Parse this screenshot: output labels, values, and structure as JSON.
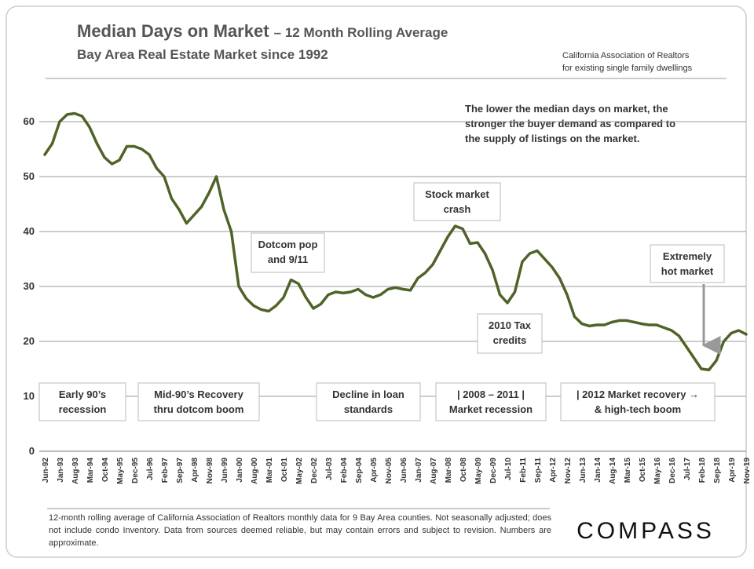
{
  "chart_data": {
    "type": "line",
    "title": "Median Days on Market",
    "title_suffix": "– 12 Month Rolling Average",
    "subtitle": "Bay Area Real Estate Market since 1992",
    "source": [
      "California Association of Realtors",
      "for existing single family dwellings"
    ],
    "note": [
      "The lower the median days on market, the",
      "stronger the buyer demand as compared to",
      "the supply of listings on the market."
    ],
    "footnote": "12-month rolling average of California Association of Realtors monthly data for 9 Bay Area counties. Not seasonally adjusted; does not include condo Inventory. Data from sources deemed reliable, but may contain errors and subject to revision. Numbers are approximate.",
    "logo": "COMPASS",
    "annotations": [
      [
        "Early 90’s",
        "recession"
      ],
      [
        "Mid-90’s Recovery",
        "thru dotcom boom"
      ],
      [
        "Dotcom pop",
        "and 9/11"
      ],
      [
        "Decline in loan",
        "standards"
      ],
      [
        "Stock market",
        "crash"
      ],
      [
        "|   2008 – 2011   |",
        "Market recession"
      ],
      [
        "2010 Tax",
        "credits"
      ],
      [
        "| 2012 Market recovery →",
        "& high-tech boom"
      ],
      [
        "Extremely",
        "hot market"
      ]
    ],
    "color": "#4f6228",
    "categories": [
      "Jun-92",
      null,
      "Jan-93",
      null,
      "Aug-93",
      null,
      "Mar-94",
      null,
      "Oct-94",
      null,
      "May-95",
      null,
      "Dec-95",
      null,
      "Jul-96",
      null,
      "Feb-97",
      null,
      "Sep-97",
      null,
      "Apr-98",
      null,
      "Nov-98",
      null,
      "Jun-99",
      null,
      "Jan-00",
      null,
      "Aug-00",
      null,
      "Mar-01",
      null,
      "Oct-01",
      null,
      "May-02",
      null,
      "Dec-02",
      null,
      "Jul-03",
      null,
      "Feb-04",
      null,
      "Sep-04",
      null,
      "Apr-05",
      null,
      "Nov-05",
      null,
      "Jun-06",
      null,
      "Jan-07",
      null,
      "Aug-07",
      null,
      "Mar-08",
      null,
      "Oct-08",
      null,
      "May-09",
      null,
      "Dec-09",
      null,
      "Jul-10",
      null,
      "Feb-11",
      null,
      "Sep-11",
      null,
      "Apr-12",
      null,
      "Nov-12",
      null,
      "Jun-13",
      null,
      "Jan-14",
      null,
      "Aug-14",
      null,
      "Mar-15",
      null,
      "Oct-15",
      null,
      "May-16",
      null,
      "Dec-16",
      null,
      "Jul-17",
      null,
      "Feb-18",
      null,
      "Sep-18",
      null,
      "Apr-19",
      null,
      "Nov-19"
    ],
    "values": [
      54,
      56,
      60,
      61.3,
      61.5,
      61,
      59,
      56,
      53.5,
      52.3,
      53,
      55.5,
      55.5,
      55,
      54,
      51.5,
      50,
      46,
      44,
      41.5,
      43,
      44.5,
      47,
      50,
      44,
      40,
      30,
      27.8,
      26.5,
      25.8,
      25.5,
      26.5,
      28,
      31.2,
      30.5,
      28,
      26,
      26.8,
      28.5,
      29,
      28.8,
      29,
      29.5,
      28.5,
      28,
      28.5,
      29.5,
      29.8,
      29.5,
      29.3,
      31.5,
      32.5,
      34,
      36.5,
      39,
      41,
      40.5,
      37.8,
      38,
      36,
      33,
      28.5,
      27,
      29,
      34.5,
      36,
      36.5,
      35,
      33.5,
      31.5,
      28.5,
      24.5,
      23.2,
      22.8,
      23,
      23,
      23.5,
      23.8,
      23.8,
      23.5,
      23.2,
      23,
      23,
      22.5,
      22,
      21,
      19,
      17,
      15,
      14.8,
      16.5,
      20,
      21.5,
      22,
      21.3
    ],
    "ylim": [
      0,
      65
    ],
    "yticks": [
      0,
      10,
      20,
      30,
      40,
      50,
      60
    ],
    "grid": true
  }
}
